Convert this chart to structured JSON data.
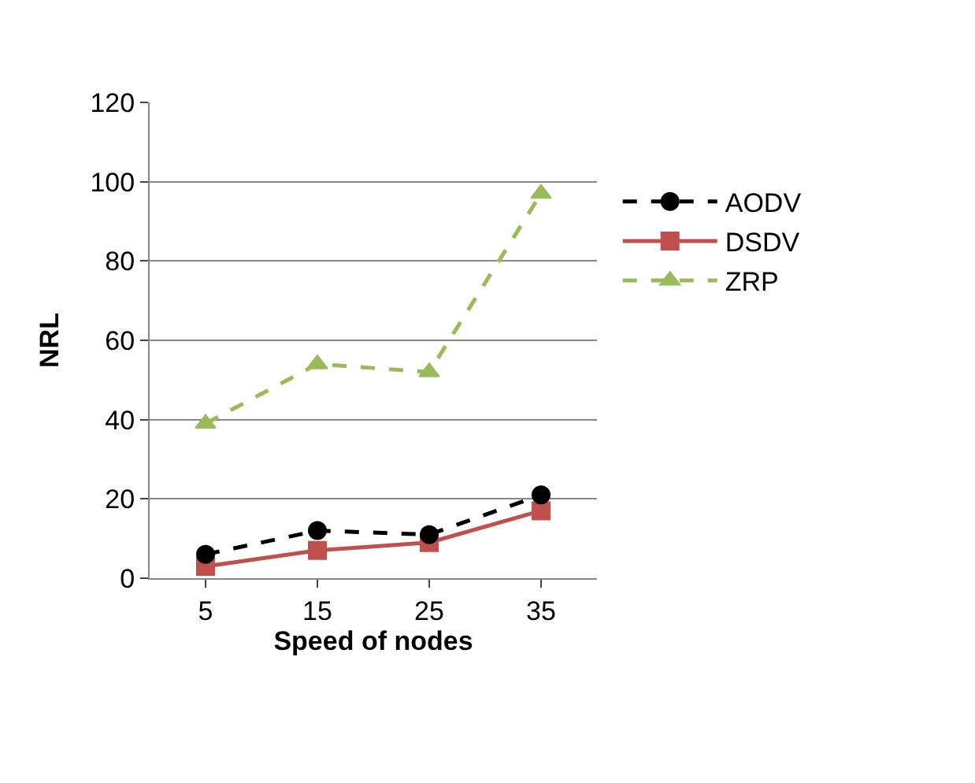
{
  "chart_data": {
    "type": "line",
    "xlabel": "Speed of nodes",
    "ylabel": "NRL",
    "categories": [
      "5",
      "15",
      "25",
      "35"
    ],
    "series": [
      {
        "name": "AODV",
        "color": "#000000",
        "values": [
          6,
          12,
          11,
          21
        ],
        "marker": "circle",
        "line_style": "dashed"
      },
      {
        "name": "DSDV",
        "color": "#c0504d",
        "values": [
          3,
          7,
          9,
          17
        ],
        "marker": "square",
        "line_style": "solid"
      },
      {
        "name": "ZRP",
        "color": "#9bbb59",
        "values": [
          39,
          54,
          52,
          97
        ],
        "marker": "triangle",
        "line_style": "dashed"
      }
    ],
    "ylim": [
      0,
      120
    ],
    "yticks": [
      0,
      20,
      40,
      60,
      80,
      100,
      120
    ],
    "grid": "y",
    "legend": "right"
  }
}
